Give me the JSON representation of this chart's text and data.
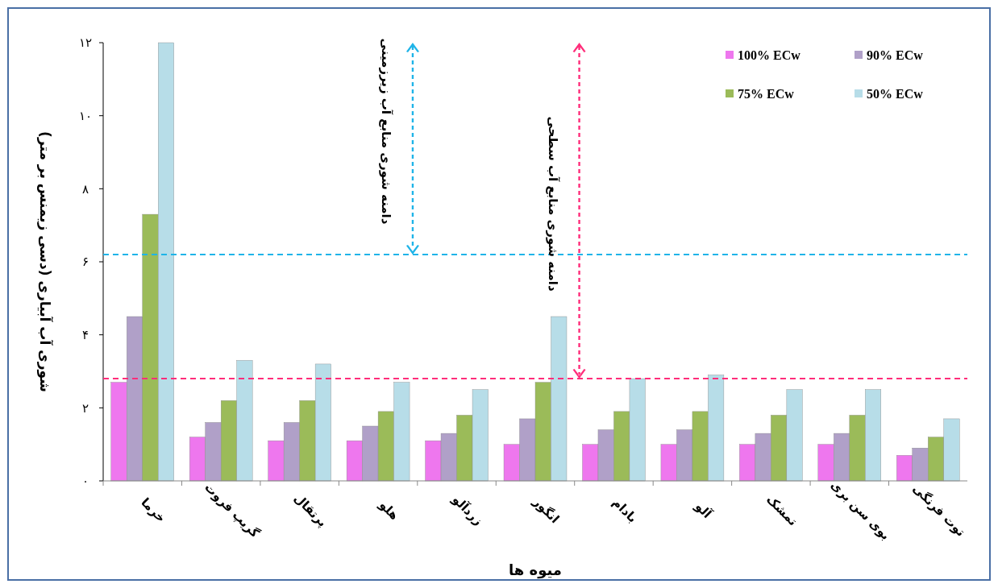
{
  "chart_data": {
    "type": "bar",
    "xlabel": "میوه ها",
    "ylabel": "شوری آب آبیاری (دسی زیمنس بر متر)",
    "categories": [
      "خرما",
      "گریپ فروت",
      "پرتقال",
      "هلو",
      "زردآلو",
      "انگور",
      "بادام",
      "آلو",
      "تمشک",
      "بوی سن بری",
      "توت فرنگی"
    ],
    "series": [
      {
        "name": "100% ECw",
        "color": "#ee77ee",
        "values": [
          2.7,
          1.2,
          1.1,
          1.1,
          1.1,
          1.0,
          1.0,
          1.0,
          1.0,
          1.0,
          0.7
        ]
      },
      {
        "name": "90% ECw",
        "color": "#b0a0c8",
        "values": [
          4.5,
          1.6,
          1.6,
          1.5,
          1.3,
          1.7,
          1.4,
          1.4,
          1.3,
          1.3,
          0.9
        ]
      },
      {
        "name": "75% ECw",
        "color": "#9bbb59",
        "values": [
          7.3,
          2.2,
          2.2,
          1.9,
          1.8,
          2.7,
          1.9,
          1.9,
          1.8,
          1.8,
          1.2
        ]
      },
      {
        "name": "50% ECw",
        "color": "#b7dde8",
        "values": [
          12,
          3.3,
          3.2,
          2.7,
          2.5,
          4.5,
          2.8,
          2.9,
          2.5,
          2.5,
          1.7
        ]
      }
    ],
    "ylim": [
      0,
      12
    ],
    "yticks": [
      {
        "value": 0,
        "label": "۰"
      },
      {
        "value": 2,
        "label": "۲"
      },
      {
        "value": 4,
        "label": "۴"
      },
      {
        "value": 6,
        "label": "۶"
      },
      {
        "value": 8,
        "label": "۸"
      },
      {
        "value": 10,
        "label": "۱۰"
      },
      {
        "value": 12,
        "label": "۱۲"
      }
    ],
    "ref_lines": [
      {
        "axis": "y",
        "value": 6.2,
        "color": "#1fb4e8",
        "line_style": "dashed"
      },
      {
        "axis": "y",
        "value": 2.8,
        "color": "#ff2d7a",
        "line_style": "dashed"
      }
    ],
    "annotations": [
      "دامنه شوری منابع آب زیرزمینی",
      "دامنه شوری منابع آب سطحی"
    ],
    "legend": "top right"
  }
}
